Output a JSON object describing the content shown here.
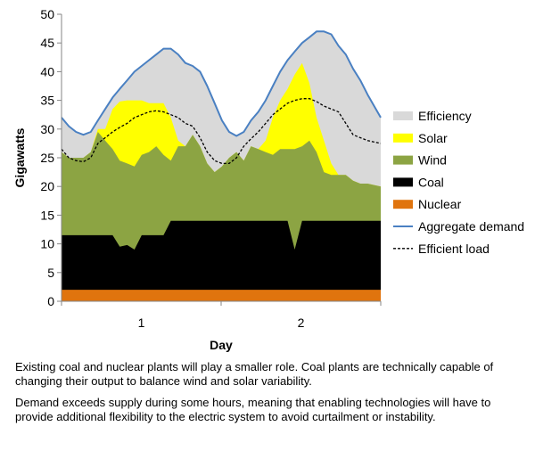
{
  "chart_data": {
    "type": "area",
    "xlabel": "Day",
    "ylabel": "Gigawatts",
    "ylim": [
      0,
      50
    ],
    "yticks": [
      "0",
      "5",
      "10",
      "15",
      "20",
      "25",
      "30",
      "35",
      "40",
      "45",
      "50"
    ],
    "xlim": [
      0.5,
      2.5
    ],
    "xticks": [
      {
        "value": 1,
        "label": "1"
      },
      {
        "value": 2,
        "label": "2"
      }
    ],
    "grid": false,
    "legend": "right",
    "legend_entries": [
      {
        "key": "efficiency",
        "label": "Efficiency",
        "kind": "patch",
        "color": "#d9d9d9"
      },
      {
        "key": "solar",
        "label": "Solar",
        "kind": "patch",
        "color": "#ffff00"
      },
      {
        "key": "wind",
        "label": "Wind",
        "kind": "patch",
        "color": "#8ca443"
      },
      {
        "key": "coal",
        "label": "Coal",
        "kind": "patch",
        "color": "#000000"
      },
      {
        "key": "nuclear",
        "label": "Nuclear",
        "kind": "patch",
        "color": "#e0740e"
      },
      {
        "key": "demand",
        "label": "Aggregate demand",
        "kind": "line",
        "color": "#4a80c2"
      },
      {
        "key": "efficient",
        "label": "Efficient load",
        "kind": "dash",
        "color": "#000000"
      }
    ],
    "x": [
      0.5,
      0.546,
      0.591,
      0.637,
      0.683,
      0.728,
      0.774,
      0.82,
      0.865,
      0.911,
      0.957,
      1.002,
      1.048,
      1.094,
      1.139,
      1.185,
      1.231,
      1.276,
      1.322,
      1.368,
      1.413,
      1.459,
      1.505,
      1.55,
      1.596,
      1.642,
      1.687,
      1.733,
      1.779,
      1.824,
      1.87,
      1.916,
      1.961,
      2.007,
      2.053,
      2.098,
      2.144,
      2.19,
      2.235,
      2.281,
      2.327,
      2.372,
      2.418,
      2.5
    ],
    "nuclear_top": [
      2,
      2,
      2,
      2,
      2,
      2,
      2,
      2,
      2,
      2,
      2,
      2,
      2,
      2,
      2,
      2,
      2,
      2,
      2,
      2,
      2,
      2,
      2,
      2,
      2,
      2,
      2,
      2,
      2,
      2,
      2,
      2,
      2,
      2,
      2,
      2,
      2,
      2,
      2,
      2,
      2,
      2,
      2,
      2
    ],
    "coal_top": [
      11.5,
      11.5,
      11.5,
      11.5,
      11.5,
      11.5,
      11.5,
      11.5,
      9.5,
      9.8,
      9,
      11.5,
      11.5,
      11.5,
      11.5,
      14,
      14,
      14,
      14,
      14,
      14,
      14,
      14,
      14,
      14,
      14,
      14,
      14,
      14,
      14,
      14,
      14,
      9,
      14,
      14,
      14,
      14,
      14,
      14,
      14,
      14,
      14,
      14,
      14
    ],
    "wind_top": [
      26,
      25,
      25,
      25,
      26,
      29.5,
      28,
      26.5,
      24.5,
      24,
      23.5,
      25.5,
      26,
      27,
      25.5,
      24.5,
      27,
      27,
      29,
      27,
      24,
      22.5,
      23.5,
      25,
      26,
      24.5,
      27,
      26.5,
      26,
      25.5,
      26.5,
      26.5,
      26.5,
      27,
      28,
      26,
      22.5,
      22,
      22,
      22,
      21,
      20.5,
      20.5,
      20
    ],
    "generation_top": [
      26,
      25,
      25,
      25,
      26,
      30,
      30,
      33.5,
      34.8,
      35,
      35,
      35,
      34.5,
      34.5,
      34.5,
      32,
      28,
      27,
      29,
      27,
      24,
      22.5,
      23.5,
      25,
      26,
      24.5,
      27,
      26.5,
      28,
      32,
      35,
      37,
      39.5,
      41.5,
      38,
      32,
      28,
      24,
      22,
      22,
      21,
      20.5,
      20.5,
      20
    ],
    "demand": [
      32,
      30.5,
      29.5,
      29,
      29.5,
      31.5,
      33.5,
      35.5,
      37,
      38.5,
      40,
      41,
      42,
      43,
      44,
      44,
      43,
      41.5,
      41,
      40,
      37.5,
      34.5,
      31.5,
      29.5,
      28.8,
      29.5,
      31.5,
      33,
      35,
      37.5,
      40,
      42,
      43.5,
      45,
      46,
      47,
      47,
      46.5,
      44.5,
      43,
      40.5,
      38.5,
      36,
      32
    ],
    "efficient_load": [
      26.5,
      25,
      24.5,
      24.3,
      25,
      27.5,
      28.5,
      29.5,
      30.3,
      31,
      32,
      32.5,
      33,
      33.2,
      33,
      32.5,
      32,
      31,
      30.5,
      28.5,
      26,
      24.5,
      24,
      24,
      25,
      27,
      28.3,
      29.5,
      31,
      32.5,
      33.5,
      34.5,
      35,
      35.3,
      35.3,
      34.8,
      34,
      33.5,
      33,
      31,
      29,
      28.5,
      28,
      27.5
    ]
  },
  "caption": {
    "p1": "Existing coal and nuclear plants will play a smaller role. Coal plants are technically capable of changing their output to balance wind and solar variability.",
    "p2": "Demand exceeds supply during some hours, meaning that enabling technologies will have to provide additional flexibility to the electric system to avoid curtailment or instability."
  }
}
